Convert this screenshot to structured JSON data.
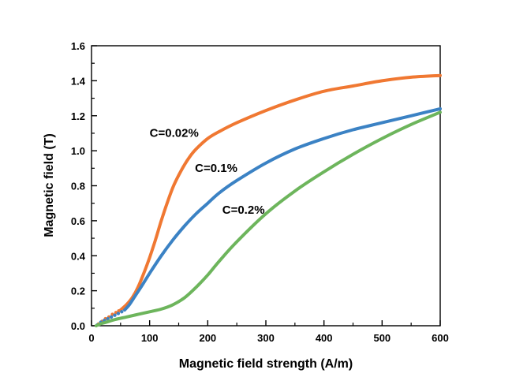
{
  "chart_data": {
    "type": "line",
    "xlabel": "Magnetic field strength (A/m)",
    "ylabel": "Magnetic field (T)",
    "xlim": [
      0,
      600
    ],
    "ylim": [
      0,
      1.6
    ],
    "xticks": [
      0,
      100,
      200,
      300,
      400,
      500,
      600
    ],
    "yticks": [
      0.0,
      0.2,
      0.4,
      0.6,
      0.8,
      1.0,
      1.2,
      1.4,
      1.6
    ],
    "xtick_labels": [
      "0",
      "100",
      "200",
      "300",
      "400",
      "500",
      "600"
    ],
    "ytick_labels": [
      "0.0",
      "0.2",
      "0.4",
      "0.6",
      "0.8",
      "1.0",
      "1.2",
      "1.4",
      "1.6"
    ],
    "grid": false,
    "series": [
      {
        "name": "C=0.02%",
        "color": "#f07832",
        "x": [
          50,
          60,
          70,
          80,
          90,
          100,
          110,
          120,
          130,
          140,
          150,
          160,
          170,
          180,
          200,
          220,
          250,
          300,
          350,
          400,
          450,
          500,
          550,
          600
        ],
        "y": [
          0.09,
          0.12,
          0.16,
          0.22,
          0.3,
          0.39,
          0.49,
          0.6,
          0.7,
          0.79,
          0.86,
          0.92,
          0.97,
          1.01,
          1.07,
          1.11,
          1.16,
          1.23,
          1.29,
          1.34,
          1.37,
          1.4,
          1.42,
          1.43
        ],
        "start_dots": {
          "x": [
            12,
            18,
            24,
            30,
            36,
            42,
            47
          ],
          "y": [
            0.01,
            0.025,
            0.04,
            0.05,
            0.065,
            0.075,
            0.085
          ]
        }
      },
      {
        "name": "C=0.1%",
        "color": "#3b82c4",
        "x": [
          57,
          65,
          75,
          85,
          100,
          120,
          140,
          160,
          180,
          200,
          220,
          250,
          300,
          350,
          400,
          450,
          500,
          550,
          600
        ],
        "y": [
          0.09,
          0.12,
          0.17,
          0.22,
          0.3,
          0.4,
          0.49,
          0.57,
          0.64,
          0.7,
          0.76,
          0.83,
          0.93,
          1.01,
          1.07,
          1.12,
          1.16,
          1.2,
          1.24
        ],
        "start_dots": {
          "x": [
            10,
            16,
            22,
            28,
            34,
            40,
            46,
            52
          ],
          "y": [
            0.005,
            0.02,
            0.03,
            0.04,
            0.05,
            0.06,
            0.07,
            0.08
          ]
        }
      },
      {
        "name": "C=0.2%",
        "color": "#6db55c",
        "x": [
          8,
          15,
          25,
          40,
          60,
          80,
          100,
          120,
          140,
          160,
          180,
          200,
          220,
          250,
          300,
          350,
          400,
          450,
          500,
          550,
          600
        ],
        "y": [
          0.0,
          0.01,
          0.02,
          0.035,
          0.05,
          0.065,
          0.08,
          0.095,
          0.12,
          0.16,
          0.22,
          0.29,
          0.37,
          0.48,
          0.64,
          0.77,
          0.88,
          0.98,
          1.07,
          1.15,
          1.22
        ]
      }
    ],
    "annotations": [
      {
        "text": "C=0.02%",
        "x": 100,
        "y": 1.08
      },
      {
        "text": "C=0.1%",
        "x": 178,
        "y": 0.88
      },
      {
        "text": "C=0.2%",
        "x": 225,
        "y": 0.64
      }
    ]
  }
}
